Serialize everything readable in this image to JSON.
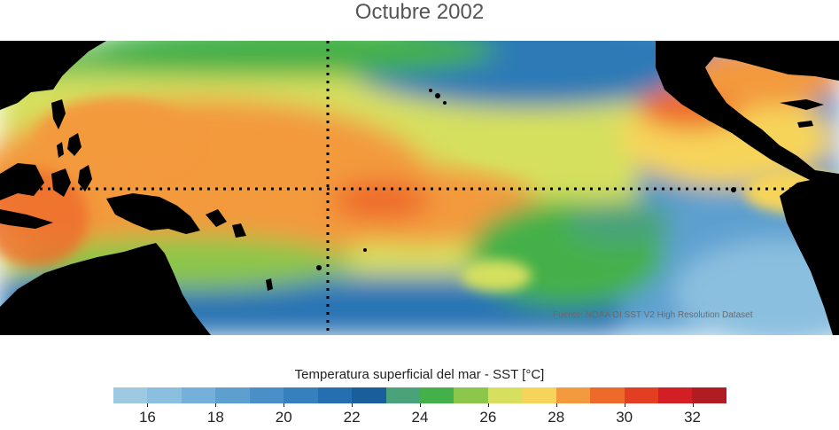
{
  "title": "Octubre 2002",
  "credit": "Fuente: NOAA OI SST V2 High Resolution Dataset",
  "colorbar": {
    "label": "Temperatura superficial del mar - SST  [°C]",
    "min": 15,
    "max": 33,
    "colors": [
      "#9ecae1",
      "#8bbfdf",
      "#74b0d9",
      "#5da0d0",
      "#4a8fc8",
      "#3580bd",
      "#256fb0",
      "#1a5e9b",
      "#4aa27a",
      "#44b04a",
      "#8cc64a",
      "#d6e05e",
      "#f6d45a",
      "#f39a3e",
      "#ee6a2a",
      "#e33e22",
      "#d21e24",
      "#b01c22"
    ],
    "ticks": [
      "16",
      "18",
      "20",
      "22",
      "24",
      "26",
      "28",
      "30",
      "32"
    ]
  },
  "map": {
    "reference_lines": [
      "equator",
      "dateline"
    ],
    "land_color": "#000000"
  }
}
